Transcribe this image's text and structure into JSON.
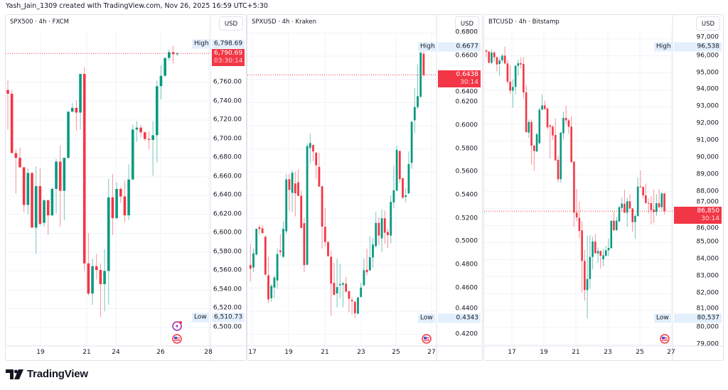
{
  "header": {
    "attribution": "Yash_Jain_1309 created with TradingView.com, Nov 26, 2025 16:59 UTC+5:30"
  },
  "footer": {
    "logo_text": "TradingView"
  },
  "colors": {
    "up": "#089981",
    "down": "#f23645",
    "badge_bg": "#e3effd",
    "grid": "#f0f3fa",
    "border": "#e0e3eb"
  },
  "chart_data": [
    {
      "type": "candlestick",
      "title": "SPX500 · 4h · FXCM",
      "currency": "USD",
      "interval": "4h",
      "y_ticks": [
        "6,760.00",
        "6,740.00",
        "6,720.00",
        "6,700.00",
        "6,680.00",
        "6,660.00",
        "6,640.00",
        "6,620.00",
        "6,600.00",
        "6,580.00",
        "6,560.00",
        "6,540.00",
        "6,520.00",
        "6,500.00"
      ],
      "x_ticks": [
        "19",
        "21",
        "24",
        "26",
        "28"
      ],
      "high": {
        "label": "High",
        "value": "6,798.69"
      },
      "low": {
        "label": "Low",
        "value": "6,510.73"
      },
      "last": {
        "value": "6,790.69",
        "countdown": "03:30:14"
      },
      "icons": [
        "lightning-event-icon",
        "us-flag-icon"
      ],
      "ohlc_fields": [
        "open",
        "high",
        "low",
        "close"
      ],
      "ohlc": [
        [
          6752,
          6762,
          6710,
          6748
        ],
        [
          6748,
          6752,
          6685,
          6685
        ],
        [
          6685,
          6689,
          6642,
          6680
        ],
        [
          6680,
          6691,
          6669,
          6670
        ],
        [
          6670,
          6670,
          6622,
          6630
        ],
        [
          6630,
          6669,
          6620,
          6664
        ],
        [
          6664,
          6664,
          6606,
          6606
        ],
        [
          6606,
          6671,
          6578,
          6650
        ],
        [
          6650,
          6669,
          6608,
          6610
        ],
        [
          6611,
          6636,
          6607,
          6635
        ],
        [
          6635,
          6636,
          6598,
          6619
        ],
        [
          6619,
          6649,
          6618,
          6647
        ],
        [
          6647,
          6679,
          6621,
          6676
        ],
        [
          6676,
          6693,
          6607,
          6645
        ],
        [
          6645,
          6680,
          6614,
          6680
        ],
        [
          6680,
          6729,
          6679,
          6729
        ],
        [
          6729,
          6738,
          6728,
          6733
        ],
        [
          6733,
          6741,
          6709,
          6728
        ],
        [
          6728,
          6769,
          6710,
          6769
        ],
        [
          6769,
          6776,
          6560,
          6568
        ],
        [
          6568,
          6600,
          6534,
          6536
        ],
        [
          6536,
          6573,
          6524,
          6565
        ],
        [
          6565,
          6578,
          6551,
          6561
        ],
        [
          6561,
          6568,
          6511,
          6546
        ],
        [
          6546,
          6583,
          6517,
          6560
        ],
        [
          6560,
          6658,
          6524,
          6638
        ],
        [
          6638,
          6663,
          6598,
          6616
        ],
        [
          6616,
          6654,
          6615,
          6647
        ],
        [
          6647,
          6649,
          6632,
          6639
        ],
        [
          6639,
          6656,
          6612,
          6619
        ],
        [
          6619,
          6673,
          6614,
          6657
        ],
        [
          6657,
          6715,
          6657,
          6710
        ],
        [
          6710,
          6719,
          6697,
          6712
        ],
        [
          6712,
          6715,
          6702,
          6707
        ],
        [
          6707,
          6708,
          6698,
          6700
        ],
        [
          6700,
          6708,
          6689,
          6699
        ],
        [
          6699,
          6719,
          6661,
          6704
        ],
        [
          6704,
          6762,
          6675,
          6756
        ],
        [
          6756,
          6778,
          6742,
          6767
        ],
        [
          6767,
          6786,
          6766,
          6786
        ],
        [
          6786,
          6795,
          6783,
          6792
        ],
        [
          6792,
          6798.69,
          6780,
          6790
        ],
        [
          6790,
          6792,
          6788,
          6790.69
        ]
      ]
    },
    {
      "type": "candlestick",
      "title": "SPXUSD · 4h · Kraken",
      "currency": "USD",
      "interval": "4h",
      "y_ticks": [
        "0.6800",
        "0.6600",
        "0.6400",
        "0.6200",
        "0.6000",
        "0.5800",
        "0.5600",
        "0.5400",
        "0.5200",
        "0.5000",
        "0.4800",
        "0.4600",
        "0.4400",
        "0.4200"
      ],
      "x_ticks": [
        "17",
        "19",
        "21",
        "23",
        "25",
        "27"
      ],
      "high": {
        "label": "High",
        "value": "0.6677"
      },
      "low": {
        "label": "Low",
        "value": "0.4343"
      },
      "last": {
        "value": "0.6438",
        "countdown": "30:14"
      },
      "icons": [
        "us-flag-icon"
      ],
      "ohlc_fields": [
        "open",
        "high",
        "low",
        "close"
      ],
      "ohlc": [
        [
          0.4798,
          0.4982,
          0.4656,
          0.4768
        ],
        [
          0.4778,
          0.4941,
          0.4737,
          0.49
        ],
        [
          0.489,
          0.5115,
          0.488,
          0.5111
        ],
        [
          0.5125,
          0.5145,
          0.5064,
          0.5111
        ],
        [
          0.5115,
          0.5145,
          0.5068,
          0.5074
        ],
        [
          0.5043,
          0.5053,
          0.4707,
          0.4717
        ],
        [
          0.4711,
          0.487,
          0.4472,
          0.4503
        ],
        [
          0.4513,
          0.4635,
          0.4482,
          0.4619
        ],
        [
          0.4605,
          0.4707,
          0.4513,
          0.4692
        ],
        [
          0.4666,
          0.4941,
          0.4594,
          0.4894
        ],
        [
          0.4925,
          0.5064,
          0.488,
          0.4911
        ],
        [
          0.487,
          0.5172,
          0.486,
          0.5111
        ],
        [
          0.509,
          0.5584,
          0.5064,
          0.5537
        ],
        [
          0.5539,
          0.5584,
          0.5268,
          0.5447
        ],
        [
          0.5421,
          0.5614,
          0.5257,
          0.5594
        ],
        [
          0.5502,
          0.5604,
          0.5217,
          0.5417
        ],
        [
          0.5512,
          0.5625,
          0.5394,
          0.5396
        ],
        [
          0.5396,
          0.5441,
          0.5115,
          0.5119
        ],
        [
          0.516,
          0.5206,
          0.4737,
          0.4798
        ],
        [
          0.4802,
          0.5849,
          0.4798,
          0.5825
        ],
        [
          0.5808,
          0.5931,
          0.5676,
          0.5851
        ],
        [
          0.5833,
          0.5839,
          0.5696,
          0.5778
        ],
        [
          0.5767,
          0.5773,
          0.5543,
          0.5659
        ],
        [
          0.5645,
          0.5767,
          0.5472,
          0.5476
        ],
        [
          0.5478,
          0.5482,
          0.4941,
          0.5131
        ],
        [
          0.5129,
          0.5294,
          0.4958,
          0.4998
        ],
        [
          0.4998,
          0.5002,
          0.487,
          0.4876
        ],
        [
          0.487,
          0.4921,
          0.436,
          0.4639
        ],
        [
          0.4645,
          0.4819,
          0.4537,
          0.4543
        ],
        [
          0.4554,
          0.4856,
          0.4435,
          0.4609
        ],
        [
          0.4625,
          0.4809,
          0.4513,
          0.4635
        ],
        [
          0.4629,
          0.4656,
          0.4435,
          0.4641
        ],
        [
          0.4639,
          0.4696,
          0.4564,
          0.457
        ],
        [
          0.4574,
          0.4578,
          0.439,
          0.4509
        ],
        [
          0.4497,
          0.4523,
          0.437,
          0.4486
        ],
        [
          0.4482,
          0.4492,
          0.4343,
          0.4384
        ],
        [
          0.438,
          0.4523,
          0.4374,
          0.4519
        ],
        [
          0.4523,
          0.4645,
          0.4523,
          0.4605
        ],
        [
          0.4625,
          0.4856,
          0.4615,
          0.4754
        ],
        [
          0.4758,
          0.4941,
          0.4707,
          0.4737
        ],
        [
          0.4754,
          0.5047,
          0.4747,
          0.4866
        ],
        [
          0.4864,
          0.5033,
          0.4778,
          0.4976
        ],
        [
          0.4962,
          0.5257,
          0.4951,
          0.5162
        ],
        [
          0.5162,
          0.5211,
          0.4972,
          0.5053
        ],
        [
          0.5029,
          0.5278,
          0.4911,
          0.5202
        ],
        [
          0.5202,
          0.5268,
          0.4982,
          0.5078
        ],
        [
          0.5084,
          0.5115,
          0.4945,
          0.5057
        ],
        [
          0.5053,
          0.54,
          0.4988,
          0.5343
        ],
        [
          0.5339,
          0.5655,
          0.5288,
          0.5443
        ],
        [
          0.5441,
          0.5829,
          0.5437,
          0.5792
        ],
        [
          0.5782,
          0.5788,
          0.5508,
          0.5539
        ],
        [
          0.5547,
          0.5553,
          0.537,
          0.538
        ],
        [
          0.5386,
          0.5461,
          0.5339,
          0.54
        ],
        [
          0.5417,
          0.5778,
          0.541,
          0.567
        ],
        [
          0.568,
          0.6043,
          0.5629,
          0.6033
        ],
        [
          0.6047,
          0.6324,
          0.5937,
          0.6161
        ],
        [
          0.6161,
          0.6528,
          0.6145,
          0.6255
        ],
        [
          0.6249,
          0.6677,
          0.6243,
          0.663
        ],
        [
          0.662,
          0.6655,
          0.642,
          0.6438
        ]
      ]
    },
    {
      "type": "candlestick",
      "title": "BTCUSD · 4h · Bitstamp",
      "currency": "USD",
      "interval": "4h",
      "y_ticks": [
        "97,000",
        "96,000",
        "95,000",
        "94,000",
        "93,000",
        "92,000",
        "91,000",
        "90,000",
        "89,000",
        "88,000",
        "87,000",
        "86,000",
        "85,000",
        "84,000",
        "83,000",
        "82,000",
        "81,000",
        "80,000",
        "79,000"
      ],
      "x_ticks": [
        "17",
        "19",
        "21",
        "23",
        "25",
        "27"
      ],
      "high": {
        "label": "High",
        "value": "96,538"
      },
      "low": {
        "label": "Low",
        "value": "80,537"
      },
      "last": {
        "value": "86,850",
        "countdown": "30:14"
      },
      "icons": [
        "us-flag-icon"
      ],
      "ohlc_fields": [
        "open",
        "high",
        "low",
        "close"
      ],
      "ohlc": [
        [
          96320,
          96389,
          95915,
          96250
        ],
        [
          96250,
          96292,
          95552,
          95594
        ],
        [
          95594,
          96389,
          95497,
          96194
        ],
        [
          96194,
          96292,
          95664,
          95915
        ],
        [
          95915,
          95971,
          95078,
          95497
        ],
        [
          95525,
          95915,
          94799,
          95734
        ],
        [
          95734,
          96110,
          95594,
          96013
        ],
        [
          96013,
          96538,
          95497,
          95552
        ],
        [
          95552,
          95776,
          94339,
          94478
        ],
        [
          94478,
          95455,
          93739,
          93948
        ],
        [
          93948,
          94618,
          92944,
          94171
        ],
        [
          94171,
          95455,
          93739,
          95413
        ],
        [
          95413,
          95776,
          94827,
          95566
        ],
        [
          95566,
          95915,
          95246,
          95497
        ],
        [
          95525,
          95915,
          93502,
          93851
        ],
        [
          93851,
          94297,
          91479,
          91507
        ],
        [
          91479,
          92246,
          91172,
          92107
        ],
        [
          92107,
          92246,
          89596,
          90712
        ],
        [
          90712,
          90754,
          89219,
          90391
        ],
        [
          90363,
          91479,
          90363,
          91381
        ],
        [
          90851,
          92944,
          90809,
          92832
        ],
        [
          92832,
          93739,
          92804,
          93083
        ],
        [
          93083,
          93362,
          92804,
          92874
        ],
        [
          92902,
          92944,
          91646,
          91786
        ],
        [
          91898,
          91967,
          89945,
          91828
        ],
        [
          91828,
          91925,
          91061,
          91312
        ],
        [
          91340,
          92316,
          89805,
          89847
        ],
        [
          89875,
          90112,
          88550,
          88731
        ],
        [
          88731,
          91507,
          88522,
          91479
        ],
        [
          91438,
          92707,
          91088,
          92344
        ],
        [
          92344,
          93083,
          91967,
          92204
        ],
        [
          92204,
          92316,
          91409,
          91828
        ],
        [
          91828,
          92428,
          89707,
          89735
        ],
        [
          89763,
          89805,
          85927,
          86764
        ],
        [
          86764,
          88159,
          86248,
          86485
        ],
        [
          86457,
          87406,
          85271,
          85690
        ],
        [
          85718,
          86248,
          82063,
          83918
        ],
        [
          83918,
          84574,
          81575,
          82202
        ],
        [
          82202,
          85411,
          80537,
          82858
        ],
        [
          82858,
          85453,
          82272,
          84155
        ],
        [
          84155,
          85341,
          83416,
          85062
        ],
        [
          85062,
          85508,
          84365,
          84365
        ],
        [
          84365,
          84713,
          83807,
          84504
        ],
        [
          84504,
          84532,
          83458,
          84225
        ],
        [
          84016,
          84644,
          83597,
          84253
        ],
        [
          84225,
          84811,
          84155,
          84546
        ],
        [
          84546,
          85229,
          84197,
          84685
        ],
        [
          84671,
          86290,
          84644,
          86290
        ],
        [
          86290,
          86806,
          85690,
          85732
        ],
        [
          85732,
          86527,
          85690,
          86290
        ],
        [
          86248,
          87182,
          86206,
          87085
        ],
        [
          87043,
          87643,
          86848,
          87294
        ],
        [
          87294,
          88103,
          86736,
          86764
        ],
        [
          86764,
          87643,
          85927,
          87434
        ],
        [
          87434,
          87852,
          86945,
          87015
        ],
        [
          87015,
          87015,
          85648,
          86206
        ],
        [
          86206,
          86708,
          85229,
          86569
        ],
        [
          86569,
          88829,
          86527,
          88298
        ],
        [
          88298,
          89247,
          88243,
          88271
        ],
        [
          88271,
          88340,
          87601,
          87782
        ],
        [
          87782,
          88480,
          87294,
          87336
        ],
        [
          87336,
          87601,
          86708,
          87322
        ],
        [
          87322,
          87740,
          86066,
          86917
        ],
        [
          86945,
          88103,
          86150,
          86806
        ],
        [
          86806,
          87852,
          86569,
          87322
        ],
        [
          87322,
          88159,
          87043,
          87085
        ],
        [
          87085,
          87964,
          86903,
          87894
        ],
        [
          87894,
          87922,
          86652,
          86850
        ]
      ]
    }
  ]
}
